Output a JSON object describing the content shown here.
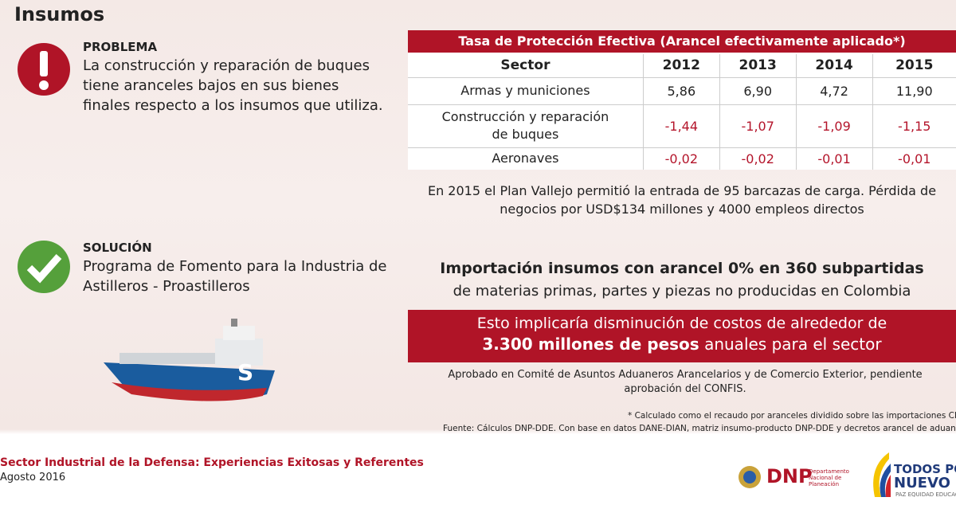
{
  "header": {
    "title": "Insumos"
  },
  "problem": {
    "label": "PROBLEMA",
    "text": "La construcción y reparación de buques tiene aranceles bajos en sus bienes finales respecto a los insumos que utiliza."
  },
  "table": {
    "title": "Tasa de Protección Efectiva (Arancel efectivamente aplicado*)",
    "columns": [
      "Sector",
      "2012",
      "2013",
      "2014",
      "2015"
    ],
    "rows": [
      [
        "Armas y municiones",
        "5,86",
        "6,90",
        "4,72",
        "11,90"
      ],
      [
        "Construcción y reparación de buques",
        "-1,44",
        "-1,07",
        "-1,09",
        "-1,15"
      ],
      [
        "Aeronaves",
        "-0,02",
        "-0,02",
        "-0,01",
        "-0,01"
      ]
    ]
  },
  "note": "En 2015 el Plan Vallejo permitió la entrada de 95 barcazas de carga. Pérdida de negocios por USD$134 millones y 4000 empleos directos",
  "solution": {
    "label": "SOLUCIÓN",
    "text": "Programa de Fomento para la Industria de Astilleros - Proastilleros"
  },
  "import": {
    "headline": "Importación insumos con arancel 0% en 360 subpartidas",
    "detail": "de materias primas, partes y piezas no producidas en Colombia"
  },
  "impact": {
    "line1": "Esto implicaría disminución de costos de alrededor de",
    "amount": "3.300 millones de pesos",
    "rest": "anuales para el sector"
  },
  "approval": "Aprobado en Comité de Asuntos Aduaneros Arancelarios y de Comercio Exterior, pendiente aprobación del CONFIS.",
  "footnotes": [
    "* Calculado como el recaudo por aranceles dividido sobre las importaciones CIF",
    "Fuente: Cálculos DNP-DDE. Con base en datos DANE-DIAN, matriz insumo-producto DNP-DDE y decretos arancel de aduanas"
  ],
  "footer": {
    "title": "Sector Industrial de la Defensa: Experiencias Exitosas y Referentes",
    "date": "Agosto 2016",
    "dnp": "DNP",
    "dnp_name": "Departamento Nacional de Planeación",
    "slogan1": "TODOS POR UN",
    "slogan2": "NUEVO PAÍS",
    "slogan3": "PAZ EQUIDAD EDUCACIÓN"
  }
}
